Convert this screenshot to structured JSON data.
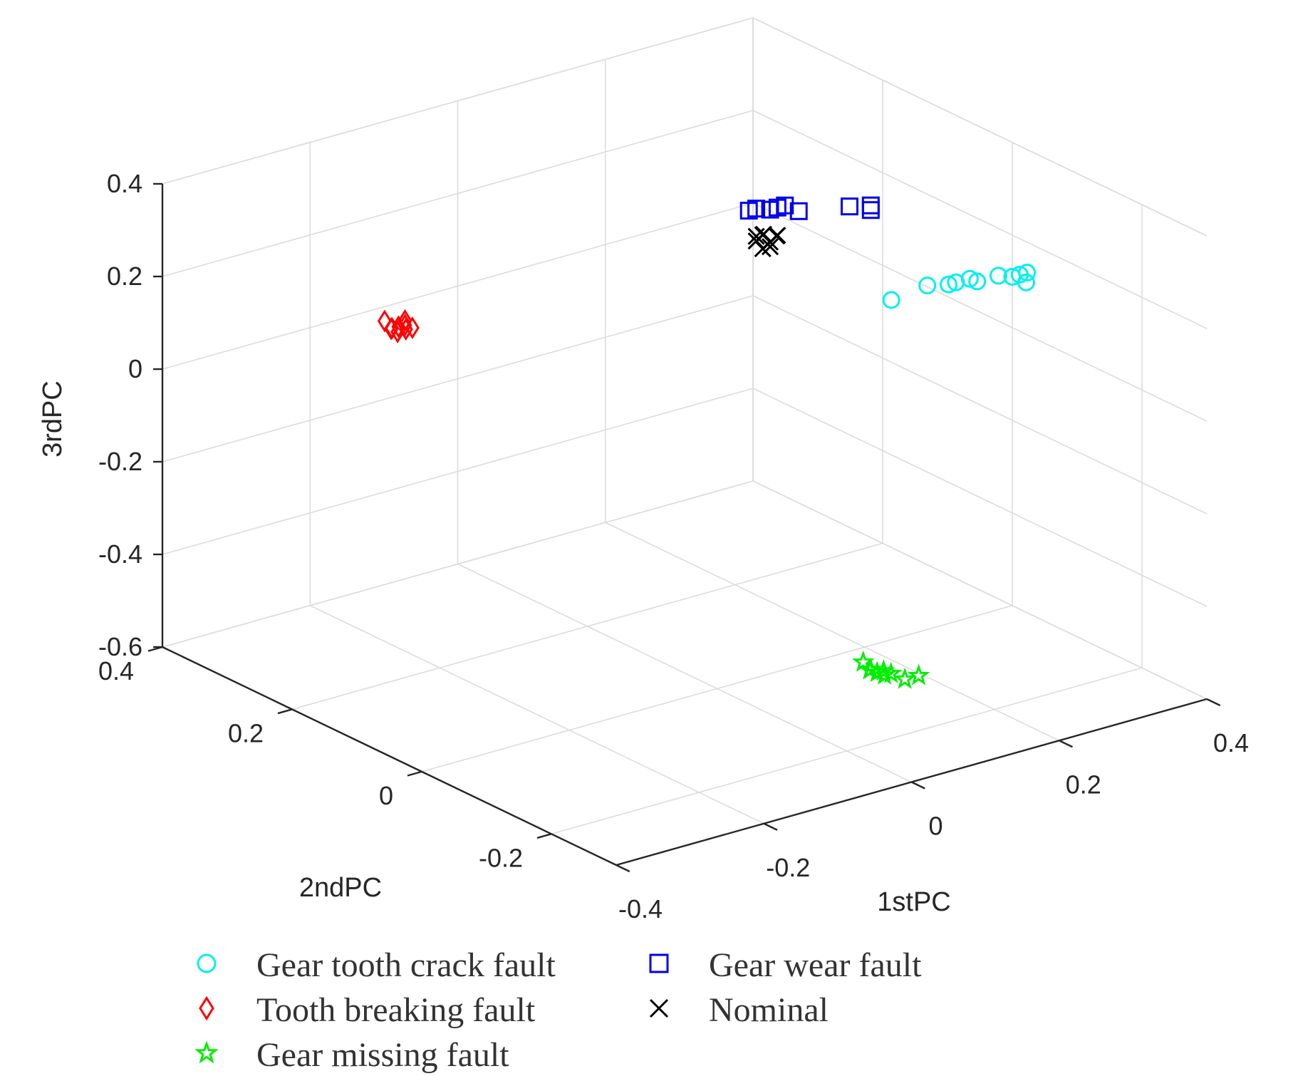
{
  "chart_data": {
    "type": "scatter",
    "title": "",
    "xlabel": "1stPC",
    "ylabel": "2ndPC",
    "zlabel": "3rdPC",
    "xlim": [
      -0.4,
      0.4
    ],
    "ylim": [
      -0.3,
      0.4
    ],
    "zlim": [
      -0.6,
      0.4
    ],
    "xticks": [
      -0.4,
      -0.2,
      0,
      0.2,
      0.4
    ],
    "xtick_labels": [
      "-0.4",
      "-0.2",
      "0",
      "0.2",
      "0.4"
    ],
    "yticks": [
      -0.2,
      0,
      0.2,
      0.4
    ],
    "ytick_labels": [
      "-0.2",
      "0",
      "0.2",
      "0.4"
    ],
    "zticks": [
      -0.6,
      -0.4,
      -0.2,
      0,
      0.2,
      0.4
    ],
    "ztick_labels": [
      "-0.6",
      "-0.4",
      "-0.2",
      "0",
      "0.2",
      "0.4"
    ],
    "grid": true,
    "legend_position": "bottom",
    "series": [
      {
        "name": "Gear tooth crack fault",
        "marker": "circle",
        "color": "#00f0f0",
        "points": [
          [
            0.28,
            0.05,
            0.08
          ],
          [
            0.32,
            0.04,
            0.1
          ],
          [
            0.34,
            0.03,
            0.1
          ],
          [
            0.35,
            0.03,
            0.1
          ],
          [
            0.36,
            0.02,
            0.11
          ],
          [
            0.37,
            0.02,
            0.1
          ],
          [
            0.39,
            0.01,
            0.11
          ],
          [
            0.4,
            0.0,
            0.11
          ],
          [
            0.41,
            0.0,
            0.11
          ],
          [
            0.41,
            -0.01,
            0.1
          ],
          [
            0.42,
            0.0,
            0.11
          ]
        ]
      },
      {
        "name": "Gear wear fault",
        "marker": "square",
        "color": "#0000ee",
        "points": [
          [
            0.21,
            0.19,
            0.21
          ],
          [
            0.22,
            0.19,
            0.21
          ],
          [
            0.23,
            0.18,
            0.21
          ],
          [
            0.24,
            0.18,
            0.21
          ],
          [
            0.25,
            0.18,
            0.21
          ],
          [
            0.26,
            0.17,
            0.2
          ],
          [
            0.32,
            0.16,
            0.19
          ],
          [
            0.34,
            0.15,
            0.19
          ],
          [
            0.34,
            0.15,
            0.18
          ]
        ]
      },
      {
        "name": "Tooth breaking  fault",
        "marker": "diamond",
        "color": "#ff0000",
        "points": [
          [
            -0.38,
            0.07,
            0.3
          ],
          [
            -0.37,
            0.07,
            0.3
          ],
          [
            -0.37,
            0.06,
            0.31
          ],
          [
            -0.36,
            0.07,
            0.29
          ],
          [
            -0.38,
            0.08,
            0.31
          ],
          [
            -0.36,
            0.06,
            0.3
          ],
          [
            -0.37,
            0.08,
            0.29
          ],
          [
            -0.37,
            0.06,
            0.32
          ],
          [
            -0.38,
            0.06,
            0.3
          ]
        ]
      },
      {
        "name": "Nominal",
        "marker": "x",
        "color": "#000000",
        "points": [
          [
            0.22,
            0.18,
            0.16
          ],
          [
            0.22,
            0.19,
            0.15
          ],
          [
            0.23,
            0.18,
            0.14
          ],
          [
            0.23,
            0.19,
            0.15
          ],
          [
            0.22,
            0.18,
            0.13
          ],
          [
            0.24,
            0.18,
            0.15
          ],
          [
            0.22,
            0.19,
            0.14
          ],
          [
            0.23,
            0.17,
            0.16
          ],
          [
            0.23,
            0.18,
            0.13
          ]
        ]
      },
      {
        "name": "Gear missing fault",
        "marker": "star",
        "color": "#00ee00",
        "points": [
          [
            0.04,
            -0.19,
            -0.45
          ],
          [
            0.05,
            -0.19,
            -0.46
          ],
          [
            0.05,
            -0.2,
            -0.45
          ],
          [
            0.06,
            -0.2,
            -0.46
          ],
          [
            0.06,
            -0.19,
            -0.47
          ],
          [
            0.05,
            -0.18,
            -0.46
          ],
          [
            0.07,
            -0.21,
            -0.47
          ],
          [
            0.08,
            -0.22,
            -0.46
          ],
          [
            0.04,
            -0.18,
            -0.44
          ]
        ]
      }
    ]
  },
  "legend": {
    "items": [
      {
        "label": "Gear tooth crack fault",
        "marker": "circle",
        "color": "#00f0f0"
      },
      {
        "label": "Gear wear fault",
        "marker": "square",
        "color": "#0000ee"
      },
      {
        "label": "Tooth breaking  fault",
        "marker": "diamond",
        "color": "#ff0000"
      },
      {
        "label": "Nominal",
        "marker": "x",
        "color": "#000000"
      },
      {
        "label": "Gear missing fault",
        "marker": "star",
        "color": "#00ee00"
      }
    ]
  }
}
